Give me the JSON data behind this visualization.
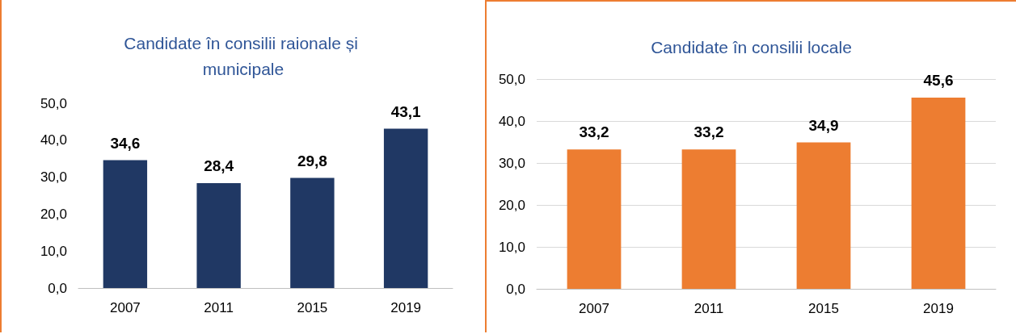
{
  "chart_data": [
    {
      "type": "bar",
      "title": "Candidate în consilii raionale și municipale",
      "categories": [
        "2007",
        "2011",
        "2015",
        "2019"
      ],
      "values": [
        34.6,
        28.4,
        29.8,
        43.1
      ],
      "value_labels": [
        "34,6",
        "28,4",
        "29,8",
        "43,1"
      ],
      "color": "#203864",
      "ylim": [
        0,
        50
      ],
      "yticks": [
        {
          "value": 0,
          "label": "0,0"
        },
        {
          "value": 10,
          "label": "10,0"
        },
        {
          "value": 20,
          "label": "20,0"
        },
        {
          "value": 30,
          "label": "30,0"
        },
        {
          "value": 40,
          "label": "40,0"
        },
        {
          "value": 50,
          "label": "50,0"
        }
      ],
      "grid": false
    },
    {
      "type": "bar",
      "title": "Candidate în consilii locale",
      "categories": [
        "2007",
        "2011",
        "2015",
        "2019"
      ],
      "values": [
        33.2,
        33.2,
        34.9,
        45.6
      ],
      "value_labels": [
        "33,2",
        "33,2",
        "34,9",
        "45,6"
      ],
      "color": "#ed7d31",
      "ylim": [
        0,
        50
      ],
      "yticks": [
        {
          "value": 0,
          "label": "0,0"
        },
        {
          "value": 10,
          "label": "10,0"
        },
        {
          "value": 20,
          "label": "20,0"
        },
        {
          "value": 30,
          "label": "30,0"
        },
        {
          "value": 40,
          "label": "40,0"
        },
        {
          "value": 50,
          "label": "50,0"
        }
      ],
      "grid": true
    }
  ]
}
